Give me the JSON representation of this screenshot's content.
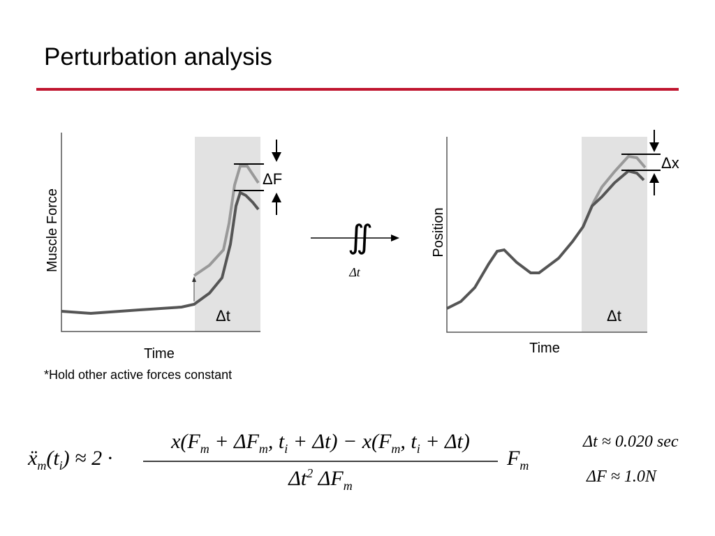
{
  "header": {
    "title": "Perturbation analysis"
  },
  "left_plot": {
    "y_label": "Muscle Force",
    "x_label": "Time",
    "delta_f": "ΔF",
    "delta_t": "Δt",
    "note": "*Hold other active forces constant"
  },
  "operator": {
    "symbol": "∬",
    "label": "Δt"
  },
  "right_plot": {
    "y_label": "Position",
    "x_label": "Time",
    "delta_x": "Δx",
    "delta_t": "Δt"
  },
  "equation": {
    "lhs": [
      {
        "text": "ẍ"
      },
      {
        "text": "m",
        "pos": "sub"
      },
      {
        "text": "(t"
      },
      {
        "text": "i",
        "pos": "sub"
      },
      {
        "text": ")"
      },
      {
        "text": " ≈ 2 · "
      }
    ],
    "numerator": [
      {
        "text": "x(F"
      },
      {
        "text": "m",
        "pos": "sub"
      },
      {
        "text": " + ΔF"
      },
      {
        "text": "m",
        "pos": "sub"
      },
      {
        "text": ", t"
      },
      {
        "text": "i",
        "pos": "sub"
      },
      {
        "text": " + Δt) − x(F"
      },
      {
        "text": "m",
        "pos": "sub"
      },
      {
        "text": ", t"
      },
      {
        "text": "i",
        "pos": "sub"
      },
      {
        "text": " + Δt)"
      }
    ],
    "denominator": [
      {
        "text": "Δt"
      },
      {
        "text": "2",
        "pos": "sup"
      },
      {
        "text": " ΔF"
      },
      {
        "text": "m",
        "pos": "sub"
      }
    ],
    "rhs": [
      {
        "text": "F"
      },
      {
        "text": "m",
        "pos": "sub"
      }
    ]
  },
  "notes": [
    "Δt ≈ 0.020 sec",
    "ΔF ≈ 1.0N"
  ]
}
